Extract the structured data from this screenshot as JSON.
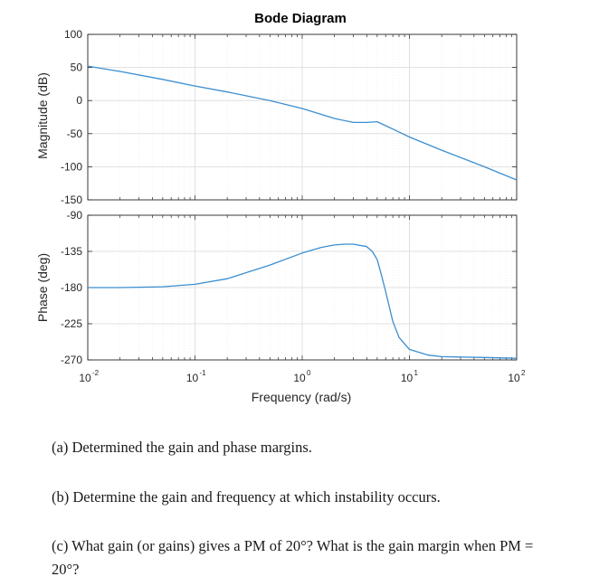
{
  "chart_data": {
    "type": "line",
    "title": "Bode Diagram",
    "xlabel": "Frequency  (rad/s)",
    "x_scale": "log",
    "xlim": [
      0.01,
      100
    ],
    "x_ticks": [
      {
        "value": 0.01,
        "base": "10",
        "exp": "-2"
      },
      {
        "value": 0.1,
        "base": "10",
        "exp": "-1"
      },
      {
        "value": 1,
        "base": "10",
        "exp": "0"
      },
      {
        "value": 10,
        "base": "10",
        "exp": "1"
      },
      {
        "value": 100,
        "base": "10",
        "exp": "2"
      }
    ],
    "grid": true,
    "line_color": "#3b8ed0",
    "panels": [
      {
        "name": "magnitude",
        "ylabel": "Magnitude (dB)",
        "ylim": [
          -150,
          100
        ],
        "yticks": [
          "100",
          "50",
          "0",
          "-50",
          "-100",
          "-150"
        ],
        "ytick_values": [
          100,
          50,
          0,
          -50,
          -100,
          -150
        ],
        "series": [
          {
            "x": [
              0.01,
              0.02,
              0.05,
              0.1,
              0.2,
              0.5,
              1,
              2,
              3,
              4,
              5,
              6,
              7,
              10,
              20,
              50,
              100
            ],
            "y": [
              52,
              44,
              32,
              22,
              13,
              0,
              -12,
              -27,
              -33,
              -33,
              -32,
              -38,
              -43,
              -55,
              -75,
              -100,
              -120
            ]
          }
        ]
      },
      {
        "name": "phase",
        "ylabel": "Phase (deg)",
        "ylim": [
          -270,
          -90
        ],
        "yticks": [
          "-90",
          "-135",
          "-180",
          "-225",
          "-270"
        ],
        "ytick_values": [
          -90,
          -135,
          -180,
          -225,
          -270
        ],
        "series": [
          {
            "x": [
              0.01,
              0.02,
              0.05,
              0.1,
              0.2,
              0.5,
              1,
              1.5,
              2,
              2.5,
              3,
              4,
              4.5,
              5,
              5.5,
              6,
              7,
              8,
              10,
              15,
              20,
              50,
              100
            ],
            "y": [
              -180,
              -180,
              -179,
              -176,
              -169,
              -152,
              -137,
              -130,
              -127,
              -126,
              -126,
              -129,
              -135,
              -145,
              -165,
              -185,
              -222,
              -242,
              -257,
              -264,
              -266,
              -267,
              -268
            ]
          }
        ]
      }
    ]
  },
  "questions": {
    "a": "(a) Determined the gain and phase margins.",
    "b": "(b) Determine the gain and frequency at which instability occurs.",
    "c": "(c) What gain (or gains) gives a PM of 20°? What is the gain margin when PM = 20°?"
  }
}
